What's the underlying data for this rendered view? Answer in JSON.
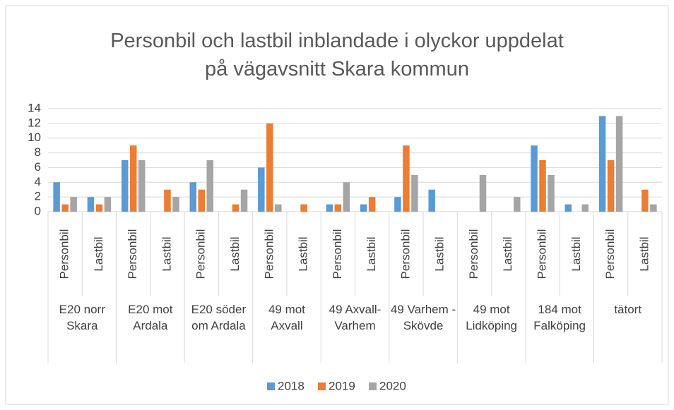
{
  "chart_data": {
    "type": "bar",
    "title": "Personbil och lastbil inblandade i olyckor uppdelat på vägavsnitt Skara kommun",
    "groups": [
      "E20 norr Skara",
      "E20 mot Ardala",
      "E20 söder om Ardala",
      "49 mot Axvall",
      "49 Axvall-Varhem",
      "49 Varhem - Skövde",
      "49 mot Lidköping",
      "184 mot Falköping",
      "tätort"
    ],
    "categories": [
      "Personbil",
      "Lastbil",
      "Personbil",
      "Lastbil",
      "Personbil",
      "Lastbil",
      "Personbil",
      "Lastbil",
      "Personbil",
      "Lastbil",
      "Personbil",
      "Lastbil",
      "Personbil",
      "Lastbil",
      "Personbil",
      "Lastbil",
      "Personbil",
      "Lastbil"
    ],
    "series": [
      {
        "name": "2018",
        "color": "#5b9bd5",
        "values": [
          4,
          2,
          7,
          0,
          4,
          0,
          6,
          0,
          1,
          1,
          2,
          3,
          0,
          0,
          9,
          1,
          13,
          0
        ]
      },
      {
        "name": "2019",
        "color": "#ed7d31",
        "values": [
          1,
          1,
          9,
          3,
          3,
          1,
          12,
          1,
          1,
          2,
          9,
          0,
          0,
          0,
          7,
          0,
          7,
          3
        ]
      },
      {
        "name": "2020",
        "color": "#a5a5a5",
        "values": [
          2,
          2,
          7,
          2,
          7,
          3,
          1,
          0,
          4,
          0,
          5,
          0,
          5,
          2,
          5,
          1,
          13,
          1
        ]
      }
    ],
    "ylim": [
      0,
      14
    ],
    "yticks": [
      0,
      2,
      4,
      6,
      8,
      10,
      12,
      14
    ],
    "grid": true,
    "legend": "bottom"
  }
}
